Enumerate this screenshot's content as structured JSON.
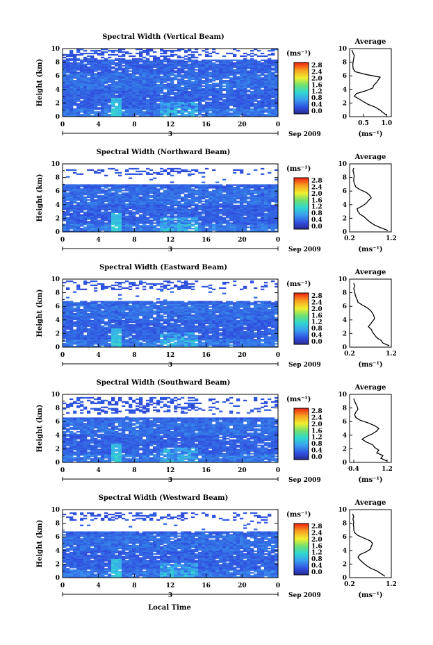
{
  "figure": {
    "xlabel": "Local Time",
    "month_label": "Sep 2009",
    "day_label": "3",
    "colorbar_unit": "(ms⁻¹)",
    "colorbar_ticks": [
      "2.8",
      "2.4",
      "2.0",
      "1.6",
      "1.2",
      "0.8",
      "0.4",
      "0.0"
    ],
    "average_title": "Average",
    "average_xlabel": "(ms⁻¹)"
  },
  "chart_data": [
    {
      "type": "heatmap",
      "title": "Spectral Width (Vertical Beam)",
      "ylabel": "Height (km)",
      "x_ticks": [
        "0",
        "4",
        "8",
        "12",
        "16",
        "20",
        "0"
      ],
      "y_ticks": [
        "0",
        "2",
        "4",
        "6",
        "8",
        "10"
      ],
      "xlim": [
        0,
        24
      ],
      "ylim": [
        0,
        10
      ],
      "clim": [
        0,
        3.0
      ],
      "gap": [
        8.5,
        8.5
      ],
      "sparse_top": 10.0,
      "average": {
        "type": "line",
        "xlim": [
          0.2,
          1.1
        ],
        "x_ticks": [
          "0.5",
          "1.0"
        ],
        "x_tick_values": [
          0.5,
          1.0
        ],
        "height": [
          0.2,
          0.6,
          1.0,
          1.4,
          1.8,
          2.2,
          2.6,
          3.0,
          3.4,
          3.8,
          4.2,
          4.6,
          5.0,
          5.4,
          5.8,
          6.2,
          6.6,
          7.0,
          7.4,
          7.8,
          8.2,
          8.6,
          9.0,
          9.4,
          9.8
        ],
        "values": [
          1.0,
          0.92,
          0.85,
          0.75,
          0.6,
          0.5,
          0.4,
          0.3,
          0.35,
          0.55,
          0.7,
          0.72,
          0.78,
          0.82,
          0.86,
          0.55,
          0.32,
          0.28,
          0.27,
          0.27,
          0.28,
          0.29,
          0.3,
          0.27,
          0.25
        ]
      }
    },
    {
      "type": "heatmap",
      "title": "Spectral Width (Northward Beam)",
      "ylabel": "Height (km)",
      "x_ticks": [
        "0",
        "4",
        "8",
        "12",
        "16",
        "20",
        "0"
      ],
      "y_ticks": [
        "0",
        "2",
        "4",
        "6",
        "8",
        "10"
      ],
      "xlim": [
        0,
        24
      ],
      "ylim": [
        0,
        10
      ],
      "clim": [
        0,
        3.0
      ],
      "gap": [
        7.0,
        8.3
      ],
      "sparse_top": 9.5,
      "average": {
        "type": "line",
        "xlim": [
          0.2,
          1.2
        ],
        "x_ticks": [
          "0.2",
          "1.2"
        ],
        "x_tick_values": [
          0.2,
          1.2
        ],
        "height": [
          0.2,
          0.6,
          1.0,
          1.4,
          1.8,
          2.2,
          2.6,
          3.0,
          3.4,
          3.8,
          4.2,
          4.6,
          5.0,
          5.4,
          5.8,
          6.2,
          6.6,
          7.0,
          7.4,
          7.8,
          8.2,
          8.6,
          9.0,
          9.4
        ],
        "values": [
          1.12,
          0.95,
          0.8,
          0.7,
          0.62,
          0.55,
          0.45,
          0.4,
          0.38,
          0.5,
          0.6,
          0.65,
          0.72,
          0.68,
          0.6,
          0.45,
          0.35,
          0.32,
          0.3,
          0.3,
          0.31,
          0.3,
          0.28,
          0.3
        ]
      }
    },
    {
      "type": "heatmap",
      "title": "Spectral Width (Eastward Beam)",
      "ylabel": "Height (km)",
      "x_ticks": [
        "0",
        "4",
        "8",
        "12",
        "16",
        "20",
        "0"
      ],
      "y_ticks": [
        "0",
        "2",
        "4",
        "6",
        "8",
        "10"
      ],
      "xlim": [
        0,
        24
      ],
      "ylim": [
        0,
        10
      ],
      "clim": [
        0,
        3.0
      ],
      "gap": [
        6.8,
        8.4
      ],
      "sparse_top": 9.8,
      "average": {
        "type": "line",
        "xlim": [
          0.2,
          1.2
        ],
        "x_ticks": [
          "0.2",
          "1.2"
        ],
        "x_tick_values": [
          0.2,
          1.2
        ],
        "height": [
          0.2,
          0.6,
          1.0,
          1.4,
          1.8,
          2.2,
          2.6,
          3.0,
          3.4,
          3.8,
          4.2,
          4.6,
          5.0,
          5.4,
          5.8,
          6.2,
          6.6,
          7.0,
          7.4,
          7.8,
          8.2,
          8.6,
          9.0,
          9.4
        ],
        "values": [
          1.15,
          1.0,
          0.95,
          0.85,
          0.8,
          0.75,
          0.72,
          0.65,
          0.7,
          0.75,
          0.8,
          0.78,
          0.75,
          0.7,
          0.62,
          0.5,
          0.4,
          0.38,
          0.35,
          0.33,
          0.32,
          0.3,
          0.32,
          0.3
        ]
      }
    },
    {
      "type": "heatmap",
      "title": "Spectral Width (Southward Beam)",
      "ylabel": "Height (km)",
      "x_ticks": [
        "0",
        "4",
        "8",
        "12",
        "16",
        "20",
        "0"
      ],
      "y_ticks": [
        "0",
        "2",
        "4",
        "6",
        "8",
        "10"
      ],
      "xlim": [
        0,
        24
      ],
      "ylim": [
        0,
        10
      ],
      "clim": [
        0,
        3.0
      ],
      "gap": [
        6.5,
        7.3
      ],
      "sparse_top": 9.7,
      "average": {
        "type": "line",
        "xlim": [
          0.3,
          1.3
        ],
        "x_ticks": [
          "0.4",
          "1.2"
        ],
        "x_tick_values": [
          0.4,
          1.2
        ],
        "height": [
          0.2,
          0.6,
          1.0,
          1.4,
          1.8,
          2.2,
          2.6,
          3.0,
          3.4,
          3.8,
          4.2,
          4.6,
          5.0,
          5.4,
          5.8,
          6.2,
          6.6,
          7.0,
          7.4,
          7.8,
          8.2,
          8.6,
          9.0,
          9.4
        ],
        "values": [
          1.2,
          1.05,
          1.1,
          0.95,
          1.0,
          0.9,
          0.85,
          0.7,
          0.6,
          0.7,
          0.85,
          0.95,
          1.0,
          0.9,
          0.75,
          0.55,
          0.45,
          0.42,
          0.45,
          0.5,
          0.48,
          0.45,
          0.42,
          0.4
        ]
      }
    },
    {
      "type": "heatmap",
      "title": "Spectral Width (Westward Beam)",
      "ylabel": "Height (km)",
      "x_ticks": [
        "0",
        "4",
        "8",
        "12",
        "16",
        "20",
        "0"
      ],
      "y_ticks": [
        "0",
        "2",
        "4",
        "6",
        "8",
        "10"
      ],
      "xlim": [
        0,
        24
      ],
      "ylim": [
        0,
        10
      ],
      "clim": [
        0,
        3.0
      ],
      "gap": [
        6.7,
        8.4
      ],
      "sparse_top": 9.6,
      "average": {
        "type": "line",
        "xlim": [
          0.2,
          1.2
        ],
        "x_ticks": [
          "0.2",
          "1.2"
        ],
        "x_tick_values": [
          0.2,
          1.2
        ],
        "height": [
          0.2,
          0.6,
          1.0,
          1.4,
          1.8,
          2.2,
          2.6,
          3.0,
          3.4,
          3.8,
          4.2,
          4.6,
          5.0,
          5.4,
          5.8,
          6.2,
          6.6,
          7.0,
          7.4,
          7.8,
          8.2,
          8.6,
          9.0,
          9.4
        ],
        "values": [
          1.05,
          0.95,
          0.85,
          0.7,
          0.6,
          0.52,
          0.45,
          0.4,
          0.45,
          0.6,
          0.7,
          0.72,
          0.75,
          0.7,
          0.55,
          0.4,
          0.32,
          0.3,
          0.3,
          0.29,
          0.3,
          0.28,
          0.3,
          0.27
        ]
      }
    }
  ]
}
